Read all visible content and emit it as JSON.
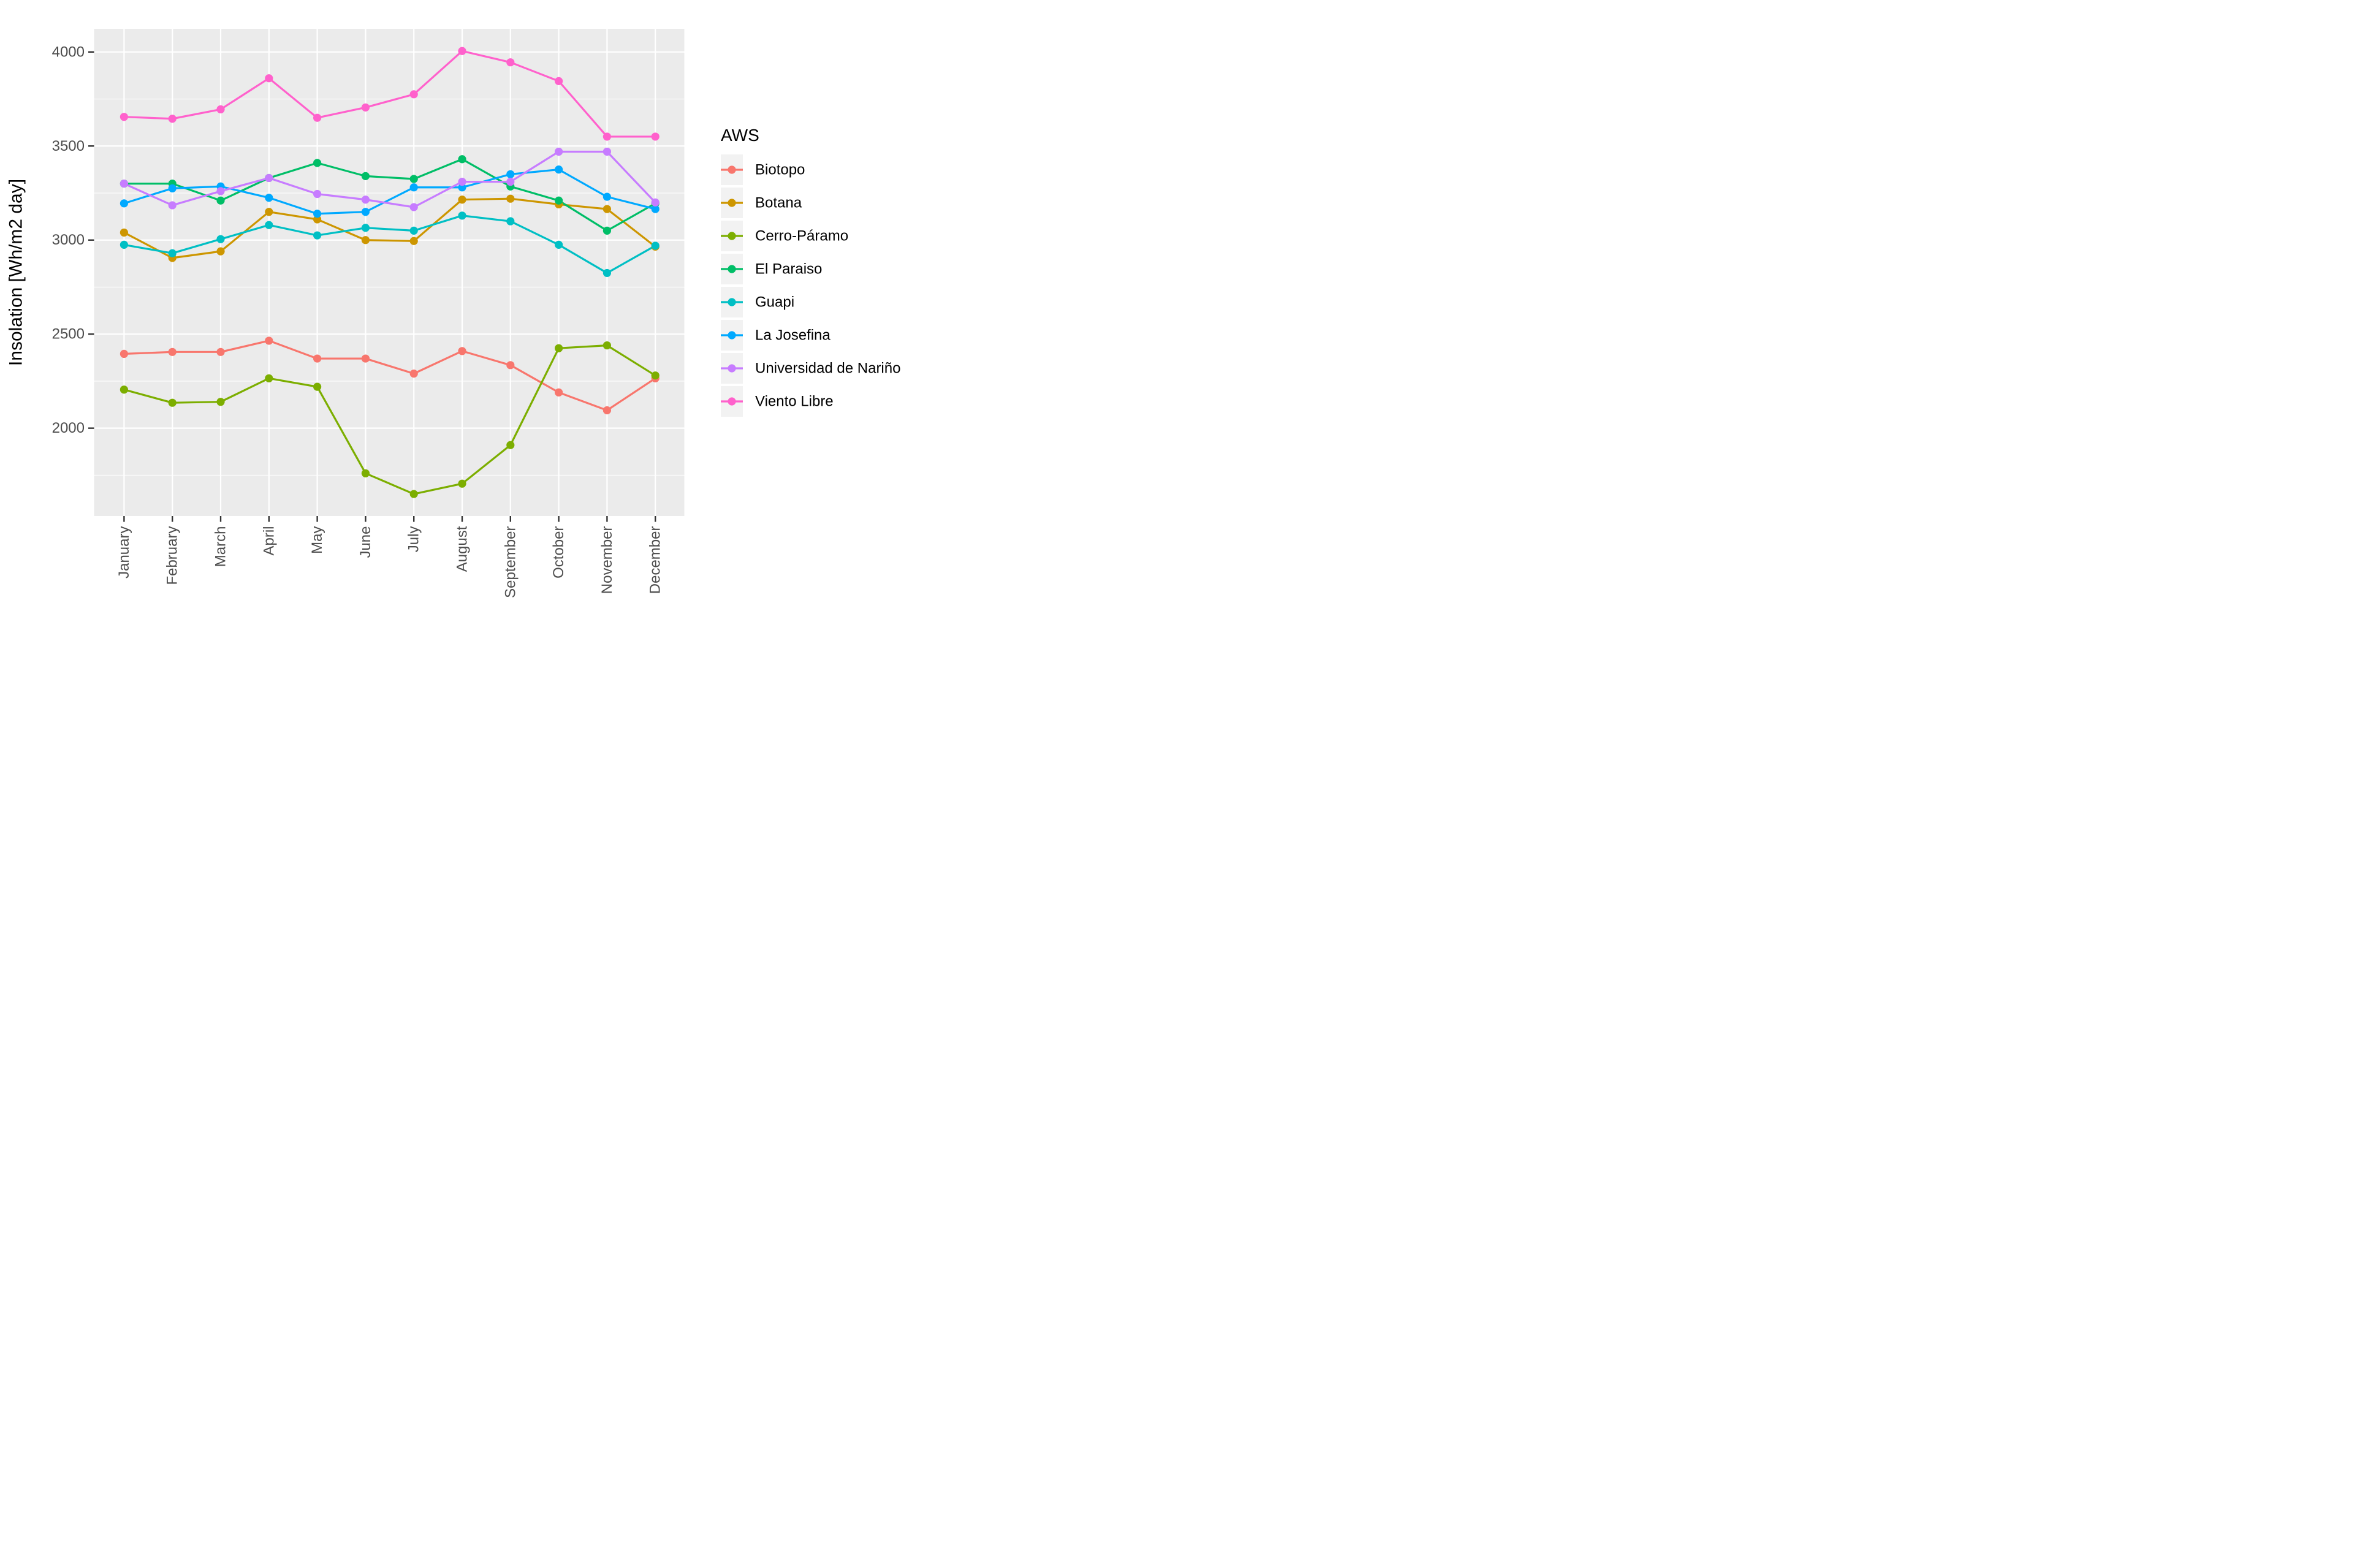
{
  "figure": {
    "background": "#FFFFFF",
    "panel_bg": "#EBEBEB",
    "grid_color": "#FFFFFF",
    "tick_mark_color": "#333333",
    "tick_label_color": "#4D4D4D",
    "axis_title_color": "#000000",
    "legend_key_bg": "#F2F2F2",
    "legend_text_color": "#000000"
  },
  "chart_data": {
    "type": "line",
    "title": "",
    "xlabel": "",
    "ylabel": "Insolation [Wh/m2 day]",
    "grid": "major-xy+minor-y",
    "legend": {
      "title": "AWS",
      "position": "right"
    },
    "categories": [
      "January",
      "February",
      "March",
      "April",
      "May",
      "June",
      "July",
      "August",
      "September",
      "October",
      "November",
      "December"
    ],
    "y_major_ticks": [
      2000,
      2500,
      3000,
      3500,
      4000
    ],
    "y_minor_ticks": [
      1750,
      2250,
      2750,
      3250,
      3750
    ],
    "ylim": [
      1532,
      4124
    ],
    "series": [
      {
        "name": "Biotopo",
        "color": "#F8766D",
        "values": [
          2395,
          2405,
          2405,
          2465,
          2370,
          2370,
          2290,
          2410,
          2335,
          2190,
          2095,
          2265
        ]
      },
      {
        "name": "Botana",
        "color": "#CD9600",
        "values": [
          3040,
          2905,
          2940,
          3150,
          3110,
          3000,
          2995,
          3215,
          3220,
          3190,
          3165,
          2965
        ]
      },
      {
        "name": "Cerro-Páramo",
        "color": "#7CAE00",
        "values": [
          2205,
          2135,
          2140,
          2265,
          2220,
          1760,
          1650,
          1705,
          1910,
          2425,
          2440,
          2280
        ]
      },
      {
        "name": "El Paraiso",
        "color": "#00BE67",
        "values": [
          3300,
          3300,
          3210,
          3330,
          3410,
          3340,
          3325,
          3430,
          3285,
          3210,
          3050,
          3195
        ]
      },
      {
        "name": "Guapi",
        "color": "#00BFC4",
        "values": [
          2975,
          2930,
          3005,
          3080,
          3025,
          3065,
          3050,
          3130,
          3100,
          2975,
          2825,
          2970
        ]
      },
      {
        "name": "La Josefina",
        "color": "#00A9FF",
        "values": [
          3195,
          3275,
          3285,
          3225,
          3140,
          3150,
          3280,
          3280,
          3350,
          3375,
          3230,
          3165
        ]
      },
      {
        "name": "Universidad de Nariño",
        "color": "#C77CFF",
        "values": [
          3300,
          3185,
          3260,
          3330,
          3245,
          3215,
          3175,
          3310,
          3310,
          3470,
          3470,
          3200
        ]
      },
      {
        "name": "Viento Libre",
        "color": "#FF61CC",
        "values": [
          3655,
          3645,
          3695,
          3860,
          3650,
          3705,
          3775,
          4005,
          3945,
          3845,
          3550,
          3550
        ]
      }
    ]
  }
}
